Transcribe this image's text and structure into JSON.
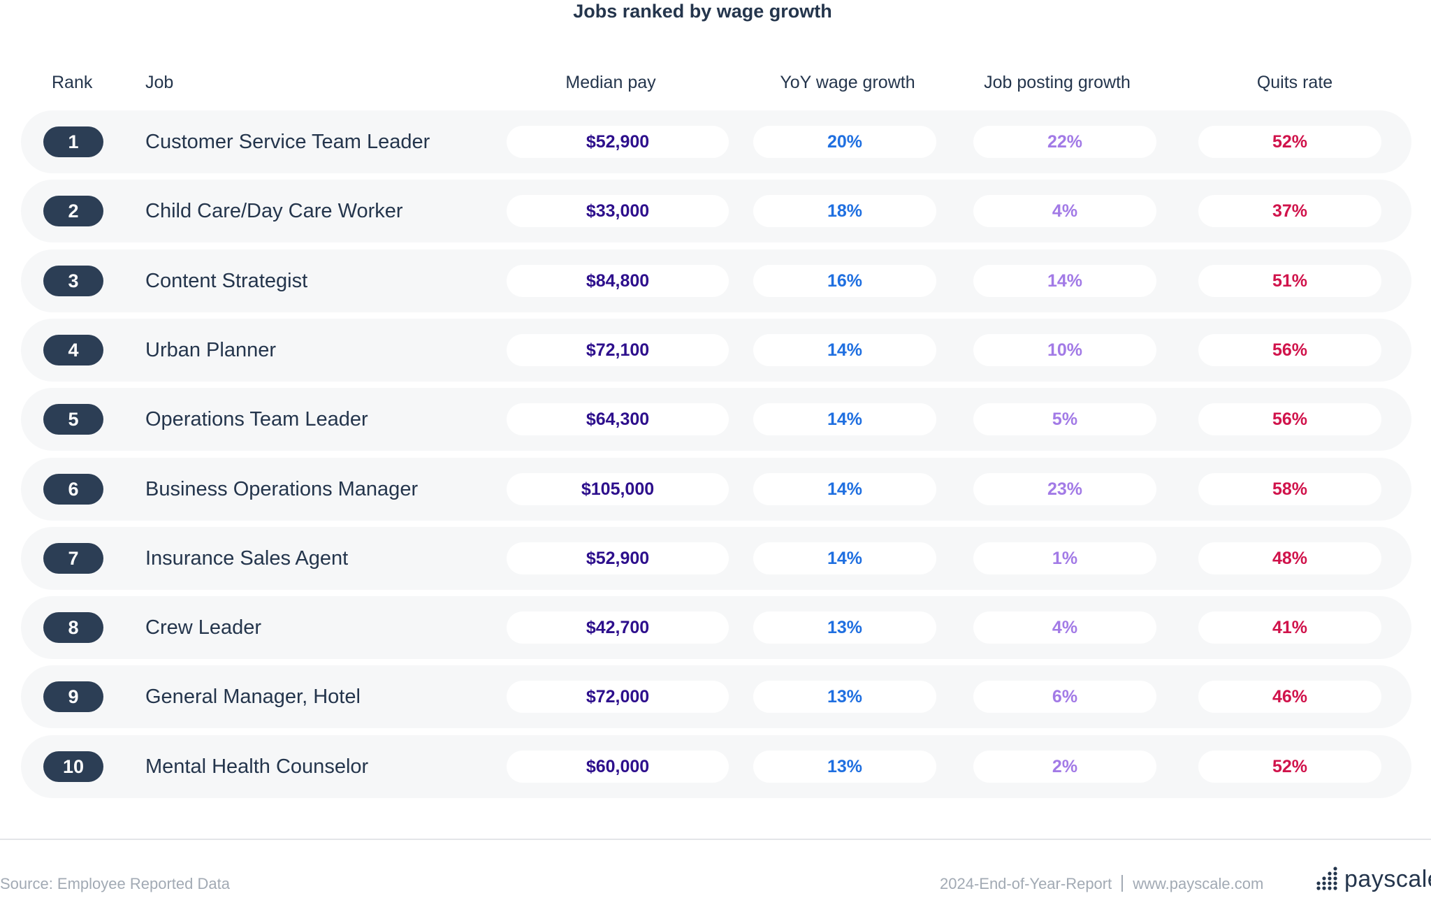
{
  "chart_data": {
    "type": "table",
    "title": "Jobs ranked by wage growth",
    "columns": [
      "Rank",
      "Job",
      "Median pay",
      "YoY wage growth",
      "Job posting growth",
      "Quits rate"
    ],
    "rows": [
      {
        "rank": "1",
        "job": "Customer Service Team Leader",
        "median_pay": "$52,900",
        "yoy_wage_growth": "20%",
        "job_posting_growth": "22%",
        "quits_rate": "52%"
      },
      {
        "rank": "2",
        "job": "Child Care/Day Care Worker",
        "median_pay": "$33,000",
        "yoy_wage_growth": "18%",
        "job_posting_growth": "4%",
        "quits_rate": "37%"
      },
      {
        "rank": "3",
        "job": "Content Strategist",
        "median_pay": "$84,800",
        "yoy_wage_growth": "16%",
        "job_posting_growth": "14%",
        "quits_rate": "51%"
      },
      {
        "rank": "4",
        "job": "Urban Planner",
        "median_pay": "$72,100",
        "yoy_wage_growth": "14%",
        "job_posting_growth": "10%",
        "quits_rate": "56%"
      },
      {
        "rank": "5",
        "job": "Operations Team Leader",
        "median_pay": "$64,300",
        "yoy_wage_growth": "14%",
        "job_posting_growth": "5%",
        "quits_rate": "56%"
      },
      {
        "rank": "6",
        "job": "Business Operations Manager",
        "median_pay": "$105,000",
        "yoy_wage_growth": "14%",
        "job_posting_growth": "23%",
        "quits_rate": "58%"
      },
      {
        "rank": "7",
        "job": "Insurance Sales Agent",
        "median_pay": "$52,900",
        "yoy_wage_growth": "14%",
        "job_posting_growth": "1%",
        "quits_rate": "48%"
      },
      {
        "rank": "8",
        "job": "Crew Leader",
        "median_pay": "$42,700",
        "yoy_wage_growth": "13%",
        "job_posting_growth": "4%",
        "quits_rate": "41%"
      },
      {
        "rank": "9",
        "job": "General Manager, Hotel",
        "median_pay": "$72,000",
        "yoy_wage_growth": "13%",
        "job_posting_growth": "6%",
        "quits_rate": "46%"
      },
      {
        "rank": "10",
        "job": "Mental Health Counselor",
        "median_pay": "$60,000",
        "yoy_wage_growth": "13%",
        "job_posting_growth": "2%",
        "quits_rate": "52%"
      }
    ]
  },
  "footer": {
    "source": "Source: Employee Reported Data",
    "report": "2024-End-of-Year-Report",
    "url": "www.payscale.com",
    "logo_text": "payscale"
  },
  "colors": {
    "rank_pill": "#2c3e55",
    "median_pay": "#2d0f8c",
    "yoy_wage_growth": "#1f6fe0",
    "job_posting_growth": "#a27ae6",
    "quits_rate": "#d0134b",
    "row_background": "#f6f7f8"
  }
}
